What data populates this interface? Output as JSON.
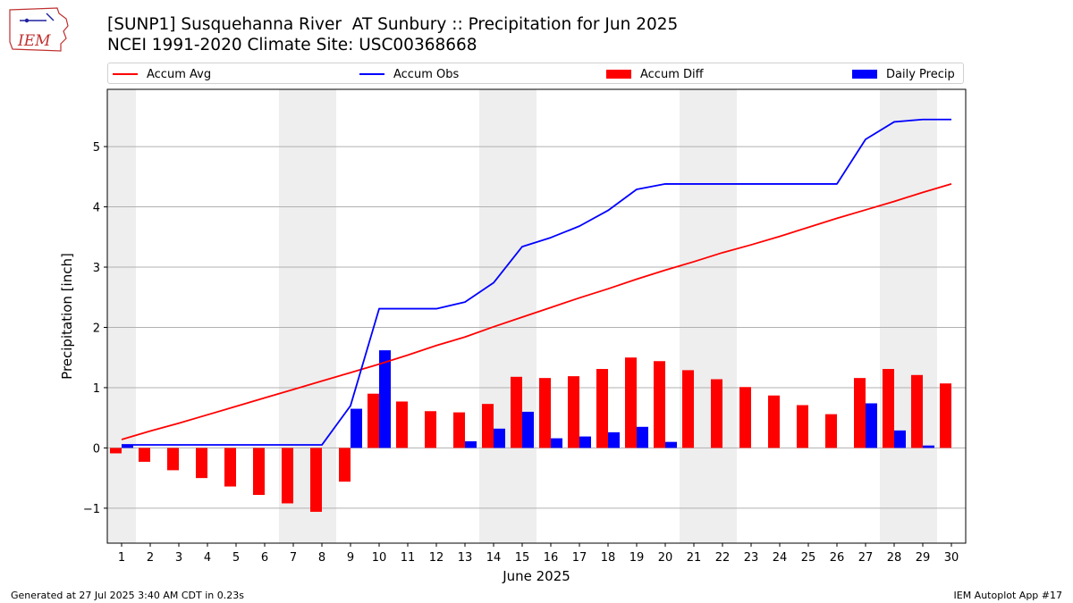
{
  "header": {
    "title_line1": "[SUNP1] Susquehanna River  AT Sunbury :: Precipitation for Jun 2025",
    "title_line2": "NCEI 1991-2020 Climate Site: USC00368668",
    "logo_text": "IEM"
  },
  "footer": {
    "generated": "Generated at 27 Jul 2025 3:40 AM CDT in 0.23s",
    "app": "IEM Autoplot App #17"
  },
  "colors": {
    "avg": "#ff0000",
    "obs": "#0000ff",
    "diff": "#ff0000",
    "daily": "#0000ff",
    "weekend": "#eeeeee",
    "grid": "#b0b0b0"
  },
  "chart_data": {
    "type": "bar",
    "xlabel": "June 2025",
    "ylabel": "Precipitation [inch]",
    "ylim": [
      -1.58,
      5.95
    ],
    "yticks": [
      -1,
      0,
      1,
      2,
      3,
      4,
      5
    ],
    "ytick_labels": [
      "−1",
      "0",
      "1",
      "2",
      "3",
      "4",
      "5"
    ],
    "grid": true,
    "legend_position": "top",
    "categories": [
      "1",
      "2",
      "3",
      "4",
      "5",
      "6",
      "7",
      "8",
      "9",
      "10",
      "11",
      "12",
      "13",
      "14",
      "15",
      "16",
      "17",
      "18",
      "19",
      "20",
      "21",
      "22",
      "23",
      "24",
      "25",
      "26",
      "27",
      "28",
      "29",
      "30"
    ],
    "weekend_days": [
      1,
      7,
      8,
      14,
      15,
      21,
      22,
      28,
      29
    ],
    "series": [
      {
        "name": "Accum Avg",
        "kind": "line",
        "values": [
          0.14,
          0.28,
          0.41,
          0.55,
          0.69,
          0.83,
          0.97,
          1.11,
          1.25,
          1.39,
          1.54,
          1.7,
          1.84,
          2.01,
          2.17,
          2.33,
          2.49,
          2.64,
          2.8,
          2.95,
          3.09,
          3.24,
          3.37,
          3.51,
          3.66,
          3.81,
          3.95,
          4.09,
          4.24,
          4.38
        ]
      },
      {
        "name": "Accum Obs",
        "kind": "line",
        "values": [
          0.05,
          0.05,
          0.05,
          0.05,
          0.05,
          0.05,
          0.05,
          0.05,
          0.7,
          2.31,
          2.31,
          2.31,
          2.42,
          2.74,
          3.34,
          3.49,
          3.68,
          3.94,
          4.29,
          4.38,
          4.38,
          4.38,
          4.38,
          4.38,
          4.38,
          4.38,
          5.12,
          5.41,
          5.45,
          5.45
        ]
      },
      {
        "name": "Accum Diff",
        "kind": "bar",
        "values": [
          -0.09,
          -0.23,
          -0.37,
          -0.5,
          -0.64,
          -0.78,
          -0.92,
          -1.06,
          -0.56,
          0.9,
          0.77,
          0.61,
          0.59,
          0.73,
          1.18,
          1.16,
          1.19,
          1.31,
          1.5,
          1.44,
          1.29,
          1.14,
          1.01,
          0.87,
          0.71,
          0.56,
          1.16,
          1.31,
          1.21,
          1.07
        ]
      },
      {
        "name": "Daily Precip",
        "kind": "bar",
        "values": [
          0.05,
          0,
          0,
          0,
          0,
          0,
          0,
          0,
          0.65,
          1.62,
          0,
          0,
          0.11,
          0.32,
          0.6,
          0.16,
          0.19,
          0.26,
          0.35,
          0.1,
          0,
          0,
          0,
          0,
          0,
          0,
          0.74,
          0.29,
          0.04,
          0
        ]
      }
    ]
  }
}
